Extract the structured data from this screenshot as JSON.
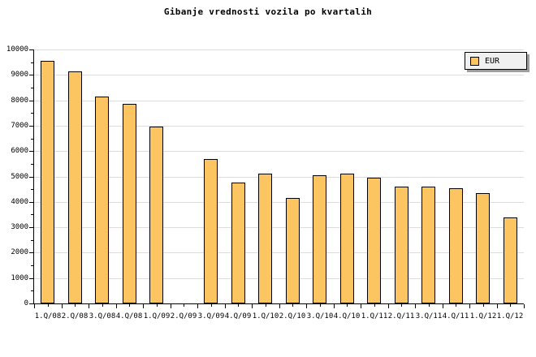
{
  "title": "Gibanje vrednosti vozila po kvartalih",
  "legend": {
    "items": [
      {
        "label": "EUR",
        "color": "#fdc462"
      }
    ]
  },
  "chart_data": {
    "type": "bar",
    "title": "Gibanje vrednosti vozila po kvartalih",
    "categories": [
      "1.Q/08",
      "2.Q/08",
      "3.Q/08",
      "4.Q/08",
      "1.Q/09",
      "2.Q/09",
      "3.Q/09",
      "4.Q/09",
      "1.Q/10",
      "2.Q/10",
      "3.Q/10",
      "4.Q/10",
      "1.Q/11",
      "2.Q/11",
      "3.Q/11",
      "4.Q/11",
      "1.Q/12",
      "1.Q/12"
    ],
    "series": [
      {
        "name": "EUR",
        "values": [
          9550,
          9150,
          8150,
          7850,
          6950,
          null,
          5700,
          4750,
          5100,
          4150,
          5050,
          5100,
          4950,
          4600,
          4600,
          4550,
          4350,
          3400
        ]
      }
    ],
    "xlabel": "",
    "ylabel": "",
    "ylim": [
      0,
      10000
    ],
    "ytick_interval": 1000,
    "ytick_minor_interval": 500,
    "grid": true,
    "legend_position": "top-right",
    "colors": {
      "bar_fill": "#fdc462",
      "bar_border": "#000000",
      "gridline": "#dcdcdc",
      "axis": "#000000",
      "background": "#ffffff",
      "legend_fill": "#f0f0f0",
      "legend_shadow": "#9e9e9e"
    }
  }
}
